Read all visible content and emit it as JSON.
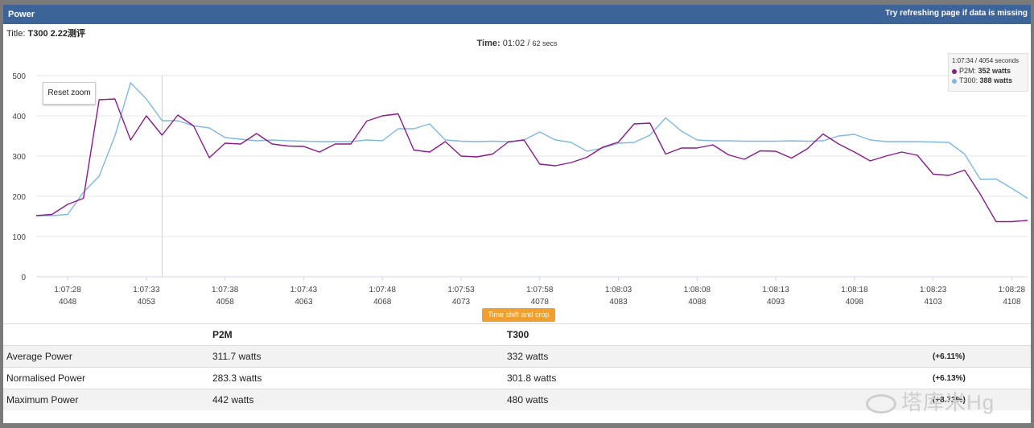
{
  "header": {
    "title": "Power",
    "hint": "Try refreshing page if data is missing"
  },
  "title_line": {
    "label": "Title:",
    "value": "T300 2.22测评"
  },
  "time_line": {
    "label": "Time:",
    "value": "01:02",
    "separator": "/",
    "total": "62 secs"
  },
  "reset_zoom_label": "Reset zoom",
  "tooltip": {
    "header": "1:07:34 / 4054 seconds",
    "rows": [
      {
        "name": "P2M",
        "value": "352 watts",
        "color": "#8b1a8b"
      },
      {
        "name": "T300",
        "value": "388 watts",
        "color": "#7fb8e0"
      }
    ]
  },
  "time_shift_label": "Time shift and crop",
  "chart_data": {
    "type": "line",
    "title": "",
    "xlabel": "",
    "ylabel": "",
    "ylim": [
      0,
      500
    ],
    "yticks": [
      0,
      100,
      200,
      300,
      400,
      500
    ],
    "xlim": [
      4046,
      4109
    ],
    "x_ticks": [
      {
        "x": 4048,
        "time": "1:07:28",
        "sec": "4048"
      },
      {
        "x": 4053,
        "time": "1:07:33",
        "sec": "4053"
      },
      {
        "x": 4058,
        "time": "1:07:38",
        "sec": "4058"
      },
      {
        "x": 4063,
        "time": "1:07:43",
        "sec": "4063"
      },
      {
        "x": 4068,
        "time": "1:07:48",
        "sec": "4068"
      },
      {
        "x": 4073,
        "time": "1:07:53",
        "sec": "4073"
      },
      {
        "x": 4078,
        "time": "1:07:58",
        "sec": "4078"
      },
      {
        "x": 4083,
        "time": "1:08:03",
        "sec": "4083"
      },
      {
        "x": 4088,
        "time": "1:08:08",
        "sec": "4088"
      },
      {
        "x": 4093,
        "time": "1:08:13",
        "sec": "4093"
      },
      {
        "x": 4098,
        "time": "1:08:18",
        "sec": "4098"
      },
      {
        "x": 4103,
        "time": "1:08:23",
        "sec": "4103"
      },
      {
        "x": 4108,
        "time": "1:08:28",
        "sec": "4108"
      }
    ],
    "crosshair_x": 4054,
    "x": [
      4046,
      4047,
      4048,
      4049,
      4050,
      4051,
      4052,
      4053,
      4054,
      4055,
      4056,
      4057,
      4058,
      4059,
      4060,
      4061,
      4062,
      4063,
      4064,
      4065,
      4066,
      4067,
      4068,
      4069,
      4070,
      4071,
      4072,
      4073,
      4074,
      4075,
      4076,
      4077,
      4078,
      4079,
      4080,
      4081,
      4082,
      4083,
      4084,
      4085,
      4086,
      4087,
      4088,
      4089,
      4090,
      4091,
      4092,
      4093,
      4094,
      4095,
      4096,
      4097,
      4098,
      4099,
      4100,
      4101,
      4102,
      4103,
      4104,
      4105,
      4106,
      4107,
      4108,
      4109
    ],
    "series": [
      {
        "name": "P2M",
        "color": "#8b1a8b",
        "values": [
          152,
          155,
          180,
          195,
          440,
          442,
          340,
          400,
          352,
          402,
          375,
          296,
          332,
          330,
          356,
          330,
          325,
          324,
          310,
          330,
          330,
          387,
          400,
          405,
          315,
          310,
          336,
          300,
          298,
          305,
          335,
          340,
          280,
          276,
          284,
          297,
          322,
          335,
          380,
          382,
          305,
          320,
          320,
          328,
          303,
          292,
          313,
          312,
          295,
          318,
          355,
          330,
          310,
          288,
          300,
          310,
          302,
          255,
          252,
          265,
          205,
          137,
          137,
          140
        ]
      },
      {
        "name": "T300",
        "color": "#7fb8e0",
        "values": [
          152,
          152,
          155,
          210,
          250,
          350,
          482,
          442,
          388,
          388,
          375,
          370,
          346,
          342,
          338,
          340,
          338,
          337,
          336,
          336,
          336,
          340,
          338,
          368,
          368,
          380,
          340,
          337,
          336,
          337,
          336,
          340,
          360,
          340,
          334,
          312,
          320,
          332,
          334,
          352,
          395,
          362,
          340,
          338,
          338,
          337,
          337,
          337,
          338,
          337,
          338,
          350,
          354,
          340,
          336,
          336,
          336,
          335,
          334,
          305,
          242,
          243,
          220,
          195
        ]
      }
    ]
  },
  "stats": {
    "headers": [
      "",
      "P2M",
      "T300",
      ""
    ],
    "rows": [
      {
        "label": "Average Power",
        "p2m": "311.7 watts",
        "t300": "332 watts",
        "diff": "(+6.11%)"
      },
      {
        "label": "Normalised Power",
        "p2m": "283.3 watts",
        "t300": "301.8 watts",
        "diff": "(+6.13%)"
      },
      {
        "label": "Maximum Power",
        "p2m": "442 watts",
        "t300": "480 watts",
        "diff": "(+8.72%)"
      }
    ]
  },
  "watermark": "塔库米Hg"
}
